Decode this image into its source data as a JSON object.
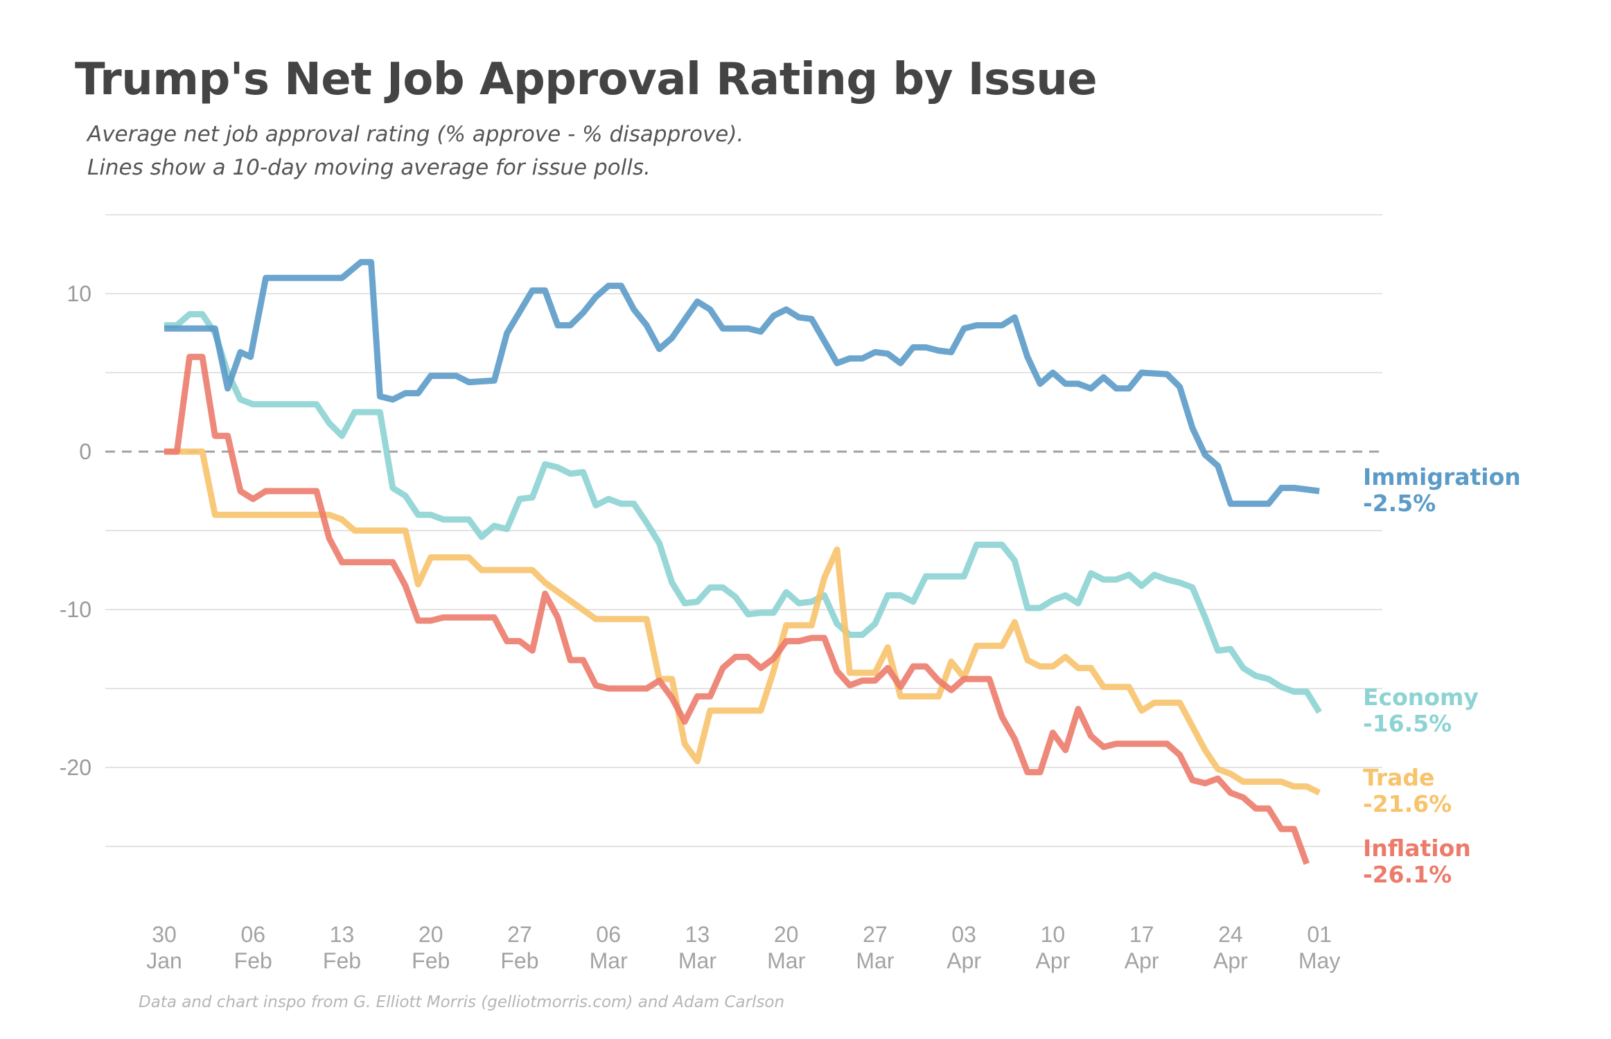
{
  "title": "Trump's Net Job Approval Rating by Issue",
  "subtitle_line1": "Average net job approval rating (% approve - % disapprove).",
  "subtitle_line2": "Lines show a 10-day moving average for issue polls.",
  "source": "Data and chart inspo from G. Elliott Morris (gelliotmorris.com) and Adam Carlson",
  "chart_data": {
    "type": "line",
    "title": "Trump's Net Job Approval Rating by Issue",
    "xlabel": "",
    "ylabel": "",
    "ylim": [
      -28,
      15
    ],
    "y_ticks": [
      10,
      0,
      -10,
      -20
    ],
    "y_tick_labels": [
      "10",
      "0",
      "-10",
      "-20"
    ],
    "zero_line": "dashed",
    "grid": true,
    "x_ticks": [
      {
        "day": 0,
        "top": "30",
        "bottom": "Jan"
      },
      {
        "day": 7,
        "top": "06",
        "bottom": "Feb"
      },
      {
        "day": 14,
        "top": "13",
        "bottom": "Feb"
      },
      {
        "day": 21,
        "top": "20",
        "bottom": "Feb"
      },
      {
        "day": 28,
        "top": "27",
        "bottom": "Feb"
      },
      {
        "day": 35,
        "top": "06",
        "bottom": "Mar"
      },
      {
        "day": 42,
        "top": "13",
        "bottom": "Mar"
      },
      {
        "day": 49,
        "top": "20",
        "bottom": "Mar"
      },
      {
        "day": 56,
        "top": "27",
        "bottom": "Mar"
      },
      {
        "day": 63,
        "top": "03",
        "bottom": "Apr"
      },
      {
        "day": 70,
        "top": "10",
        "bottom": "Apr"
      },
      {
        "day": 77,
        "top": "17",
        "bottom": "Apr"
      },
      {
        "day": 84,
        "top": "24",
        "bottom": "Apr"
      },
      {
        "day": 91,
        "top": "01",
        "bottom": "May"
      }
    ],
    "x_unit": "days since 30 Jan",
    "series": [
      {
        "name": "Immigration",
        "end_label": "-2.5%",
        "color": "#5b9bc8",
        "points": [
          [
            0,
            7.8
          ],
          [
            4,
            7.8
          ],
          [
            5,
            4
          ],
          [
            6,
            6.3
          ],
          [
            6.8,
            6
          ],
          [
            8,
            11
          ],
          [
            14,
            11
          ],
          [
            15.5,
            12
          ],
          [
            16.3,
            12
          ],
          [
            17,
            3.5
          ],
          [
            18,
            3.3
          ],
          [
            19,
            3.7
          ],
          [
            20,
            3.7
          ],
          [
            21,
            4.8
          ],
          [
            23,
            4.8
          ],
          [
            24,
            4.4
          ],
          [
            26,
            4.5
          ],
          [
            27,
            7.5
          ],
          [
            29,
            10.2
          ],
          [
            30,
            10.2
          ],
          [
            31,
            8
          ],
          [
            32,
            8
          ],
          [
            33,
            8.8
          ],
          [
            34,
            9.8
          ],
          [
            35,
            10.5
          ],
          [
            36,
            10.5
          ],
          [
            37,
            9
          ],
          [
            38,
            8
          ],
          [
            39,
            6.5
          ],
          [
            40,
            7.2
          ],
          [
            42,
            9.5
          ],
          [
            43,
            9
          ],
          [
            44,
            7.8
          ],
          [
            46,
            7.8
          ],
          [
            47,
            7.6
          ],
          [
            48,
            8.6
          ],
          [
            49,
            9
          ],
          [
            50,
            8.5
          ],
          [
            51,
            8.4
          ],
          [
            53,
            5.6
          ],
          [
            54,
            5.9
          ],
          [
            55,
            5.9
          ],
          [
            56,
            6.3
          ],
          [
            57,
            6.2
          ],
          [
            58,
            5.6
          ],
          [
            59,
            6.6
          ],
          [
            60,
            6.6
          ],
          [
            61,
            6.4
          ],
          [
            62,
            6.3
          ],
          [
            63,
            7.8
          ],
          [
            64,
            8
          ],
          [
            66,
            8
          ],
          [
            67,
            8.5
          ],
          [
            68,
            6
          ],
          [
            69,
            4.3
          ],
          [
            70,
            5
          ],
          [
            71,
            4.3
          ],
          [
            72,
            4.3
          ],
          [
            73,
            4
          ],
          [
            74,
            4.7
          ],
          [
            75,
            4
          ],
          [
            76,
            4
          ],
          [
            77,
            5
          ],
          [
            79,
            4.9
          ],
          [
            80,
            4.1
          ],
          [
            81,
            1.5
          ],
          [
            82,
            -0.2
          ],
          [
            83,
            -0.9
          ],
          [
            84,
            -3.3
          ],
          [
            87,
            -3.3
          ],
          [
            88,
            -2.3
          ],
          [
            89,
            -2.3
          ],
          [
            91,
            -2.5
          ]
        ]
      },
      {
        "name": "Economy",
        "end_label": "-16.5%",
        "color": "#8dd3d3",
        "points": [
          [
            0,
            8
          ],
          [
            1,
            8
          ],
          [
            2,
            8.7
          ],
          [
            3,
            8.7
          ],
          [
            4,
            7.5
          ],
          [
            5,
            5
          ],
          [
            6,
            3.3
          ],
          [
            7,
            3
          ],
          [
            12,
            3
          ],
          [
            13,
            1.8
          ],
          [
            14,
            1
          ],
          [
            15,
            2.5
          ],
          [
            17,
            2.5
          ],
          [
            18,
            -2.3
          ],
          [
            19,
            -2.8
          ],
          [
            20,
            -4
          ],
          [
            21,
            -4
          ],
          [
            22,
            -4.3
          ],
          [
            24,
            -4.3
          ],
          [
            25,
            -5.4
          ],
          [
            26,
            -4.7
          ],
          [
            27,
            -4.9
          ],
          [
            28,
            -3
          ],
          [
            29,
            -2.9
          ],
          [
            30,
            -0.8
          ],
          [
            31,
            -1
          ],
          [
            32,
            -1.4
          ],
          [
            33,
            -1.3
          ],
          [
            34,
            -3.4
          ],
          [
            35,
            -3
          ],
          [
            36,
            -3.3
          ],
          [
            37,
            -3.3
          ],
          [
            38,
            -4.5
          ],
          [
            39,
            -5.8
          ],
          [
            40,
            -8.3
          ],
          [
            41,
            -9.6
          ],
          [
            42,
            -9.5
          ],
          [
            43,
            -8.6
          ],
          [
            44,
            -8.6
          ],
          [
            45,
            -9.2
          ],
          [
            46,
            -10.3
          ],
          [
            47,
            -10.2
          ],
          [
            48,
            -10.2
          ],
          [
            49,
            -8.9
          ],
          [
            50,
            -9.6
          ],
          [
            51,
            -9.5
          ],
          [
            52,
            -9.1
          ],
          [
            53,
            -10.9
          ],
          [
            54,
            -11.6
          ],
          [
            55,
            -11.6
          ],
          [
            56,
            -10.9
          ],
          [
            57,
            -9.1
          ],
          [
            58,
            -9.1
          ],
          [
            59,
            -9.5
          ],
          [
            60,
            -7.9
          ],
          [
            63,
            -7.9
          ],
          [
            64,
            -5.9
          ],
          [
            66,
            -5.9
          ],
          [
            67,
            -6.9
          ],
          [
            68,
            -9.9
          ],
          [
            69,
            -9.9
          ],
          [
            70,
            -9.4
          ],
          [
            71,
            -9.1
          ],
          [
            72,
            -9.6
          ],
          [
            73,
            -7.7
          ],
          [
            74,
            -8.1
          ],
          [
            75,
            -8.1
          ],
          [
            76,
            -7.8
          ],
          [
            77,
            -8.5
          ],
          [
            78,
            -7.8
          ],
          [
            79,
            -8.1
          ],
          [
            80,
            -8.3
          ],
          [
            81,
            -8.6
          ],
          [
            82,
            -10.5
          ],
          [
            83,
            -12.6
          ],
          [
            84,
            -12.5
          ],
          [
            85,
            -13.7
          ],
          [
            86,
            -14.2
          ],
          [
            87,
            -14.4
          ],
          [
            88,
            -14.9
          ],
          [
            89,
            -15.2
          ],
          [
            90,
            -15.2
          ],
          [
            91,
            -16.5
          ]
        ]
      },
      {
        "name": "Trade",
        "end_label": "-21.6%",
        "color": "#f7c36b",
        "points": [
          [
            0,
            0
          ],
          [
            3,
            0
          ],
          [
            4,
            -4
          ],
          [
            13,
            -4
          ],
          [
            14,
            -4.3
          ],
          [
            15,
            -5
          ],
          [
            19,
            -5
          ],
          [
            20,
            -8.4
          ],
          [
            21,
            -6.7
          ],
          [
            24,
            -6.7
          ],
          [
            25,
            -7.5
          ],
          [
            29,
            -7.5
          ],
          [
            30,
            -8.3
          ],
          [
            34,
            -10.6
          ],
          [
            38,
            -10.6
          ],
          [
            39,
            -14.4
          ],
          [
            40,
            -14.4
          ],
          [
            41,
            -18.5
          ],
          [
            42,
            -19.6
          ],
          [
            43,
            -16.4
          ],
          [
            47,
            -16.4
          ],
          [
            48,
            -13.9
          ],
          [
            49,
            -11
          ],
          [
            51,
            -11
          ],
          [
            52,
            -8
          ],
          [
            53,
            -6.2
          ],
          [
            54,
            -14
          ],
          [
            56,
            -14
          ],
          [
            57,
            -12.4
          ],
          [
            58,
            -15.5
          ],
          [
            61,
            -15.5
          ],
          [
            62,
            -13.3
          ],
          [
            63,
            -14.3
          ],
          [
            64,
            -12.3
          ],
          [
            66,
            -12.3
          ],
          [
            67,
            -10.8
          ],
          [
            68,
            -13.2
          ],
          [
            69,
            -13.6
          ],
          [
            70,
            -13.6
          ],
          [
            71,
            -13
          ],
          [
            72,
            -13.7
          ],
          [
            73,
            -13.7
          ],
          [
            74,
            -14.9
          ],
          [
            76,
            -14.9
          ],
          [
            77,
            -16.4
          ],
          [
            78,
            -15.9
          ],
          [
            80,
            -15.9
          ],
          [
            81,
            -17.4
          ],
          [
            82,
            -18.9
          ],
          [
            83,
            -20.1
          ],
          [
            84,
            -20.4
          ],
          [
            85,
            -20.9
          ],
          [
            88,
            -20.9
          ],
          [
            89,
            -21.2
          ],
          [
            90,
            -21.2
          ],
          [
            91,
            -21.6
          ]
        ]
      },
      {
        "name": "Inflation",
        "end_label": "-26.1%",
        "color": "#ec7b6b",
        "points": [
          [
            0,
            0
          ],
          [
            1,
            0
          ],
          [
            2,
            6
          ],
          [
            3,
            6
          ],
          [
            4,
            1
          ],
          [
            5,
            1
          ],
          [
            6,
            -2.5
          ],
          [
            7,
            -3
          ],
          [
            8,
            -2.5
          ],
          [
            12,
            -2.5
          ],
          [
            13,
            -5.5
          ],
          [
            14,
            -7
          ],
          [
            18,
            -7
          ],
          [
            19,
            -8.5
          ],
          [
            20,
            -10.7
          ],
          [
            21,
            -10.7
          ],
          [
            22,
            -10.5
          ],
          [
            26,
            -10.5
          ],
          [
            27,
            -12
          ],
          [
            28,
            -12
          ],
          [
            29,
            -12.6
          ],
          [
            30,
            -9
          ],
          [
            31,
            -10.5
          ],
          [
            32,
            -13.2
          ],
          [
            33,
            -13.2
          ],
          [
            34,
            -14.8
          ],
          [
            35,
            -15
          ],
          [
            38,
            -15
          ],
          [
            39,
            -14.5
          ],
          [
            40,
            -15.6
          ],
          [
            41,
            -17.1
          ],
          [
            42,
            -15.5
          ],
          [
            43,
            -15.5
          ],
          [
            44,
            -13.7
          ],
          [
            45,
            -13
          ],
          [
            46,
            -13
          ],
          [
            47,
            -13.7
          ],
          [
            48,
            -13.1
          ],
          [
            49,
            -12
          ],
          [
            50,
            -12
          ],
          [
            51,
            -11.8
          ],
          [
            52,
            -11.8
          ],
          [
            53,
            -13.9
          ],
          [
            54,
            -14.8
          ],
          [
            55,
            -14.5
          ],
          [
            56,
            -14.5
          ],
          [
            57,
            -13.7
          ],
          [
            58,
            -14.9
          ],
          [
            59,
            -13.6
          ],
          [
            60,
            -13.6
          ],
          [
            61,
            -14.5
          ],
          [
            62,
            -15.1
          ],
          [
            63,
            -14.4
          ],
          [
            65,
            -14.4
          ],
          [
            66,
            -16.8
          ],
          [
            67,
            -18.2
          ],
          [
            68,
            -20.3
          ],
          [
            69,
            -20.3
          ],
          [
            70,
            -17.8
          ],
          [
            71,
            -18.9
          ],
          [
            72,
            -16.3
          ],
          [
            73,
            -18
          ],
          [
            74,
            -18.7
          ],
          [
            75,
            -18.5
          ],
          [
            79,
            -18.5
          ],
          [
            80,
            -19.2
          ],
          [
            81,
            -20.8
          ],
          [
            82,
            -21
          ],
          [
            83,
            -20.7
          ],
          [
            84,
            -21.6
          ],
          [
            85,
            -21.9
          ],
          [
            86,
            -22.6
          ],
          [
            87,
            -22.6
          ],
          [
            88,
            -23.9
          ],
          [
            89,
            -23.9
          ],
          [
            90,
            -26.1
          ]
        ]
      }
    ]
  }
}
